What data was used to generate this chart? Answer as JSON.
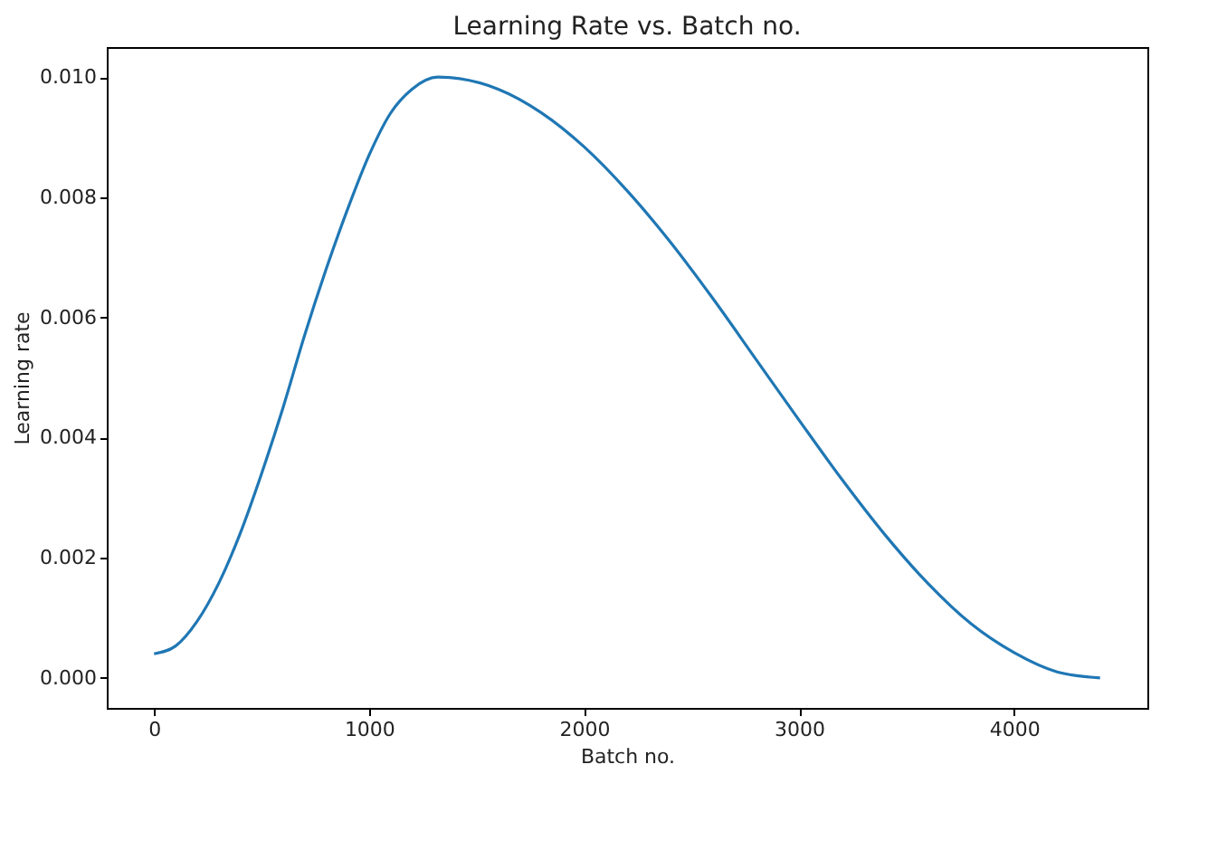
{
  "chart_data": {
    "type": "line",
    "title": "Learning Rate vs. Batch no.",
    "xlabel": "Batch no.",
    "ylabel": "Learning rate",
    "x": [
      0,
      100,
      200,
      300,
      400,
      500,
      600,
      700,
      800,
      900,
      1000,
      1100,
      1200,
      1320,
      1600,
      1800,
      2000,
      2200,
      2400,
      2600,
      2800,
      3000,
      3200,
      3400,
      3600,
      3800,
      4000,
      4200,
      4400
    ],
    "series": [
      {
        "color": "#1f77b4",
        "values": [
          0.0004,
          0.00053,
          0.00094,
          0.00157,
          0.0024,
          0.0034,
          0.0045,
          0.0057,
          0.0068,
          0.0078,
          0.0087,
          0.0094,
          0.0098,
          0.01,
          0.0098,
          0.00941,
          0.00884,
          0.00811,
          0.00726,
          0.00631,
          0.0053,
          0.00429,
          0.0033,
          0.00238,
          0.00157,
          0.0009,
          0.00042,
          0.0001,
          0.0
        ]
      }
    ],
    "xlim": [
      -220,
      4620
    ],
    "xticks": [
      0,
      1000,
      2000,
      3000,
      4000
    ],
    "ylim": [
      -0.0005,
      0.0105
    ],
    "yticks": [
      {
        "value": 0,
        "label": "0.000"
      },
      {
        "value": 0.002,
        "label": "0.002"
      },
      {
        "value": 0.004,
        "label": "0.004"
      },
      {
        "value": 0.006,
        "label": "0.006"
      },
      {
        "value": 0.008,
        "label": "0.008"
      },
      {
        "value": 0.01,
        "label": "0.010"
      }
    ],
    "grid": false,
    "marker": "none",
    "line_style": "solid"
  }
}
